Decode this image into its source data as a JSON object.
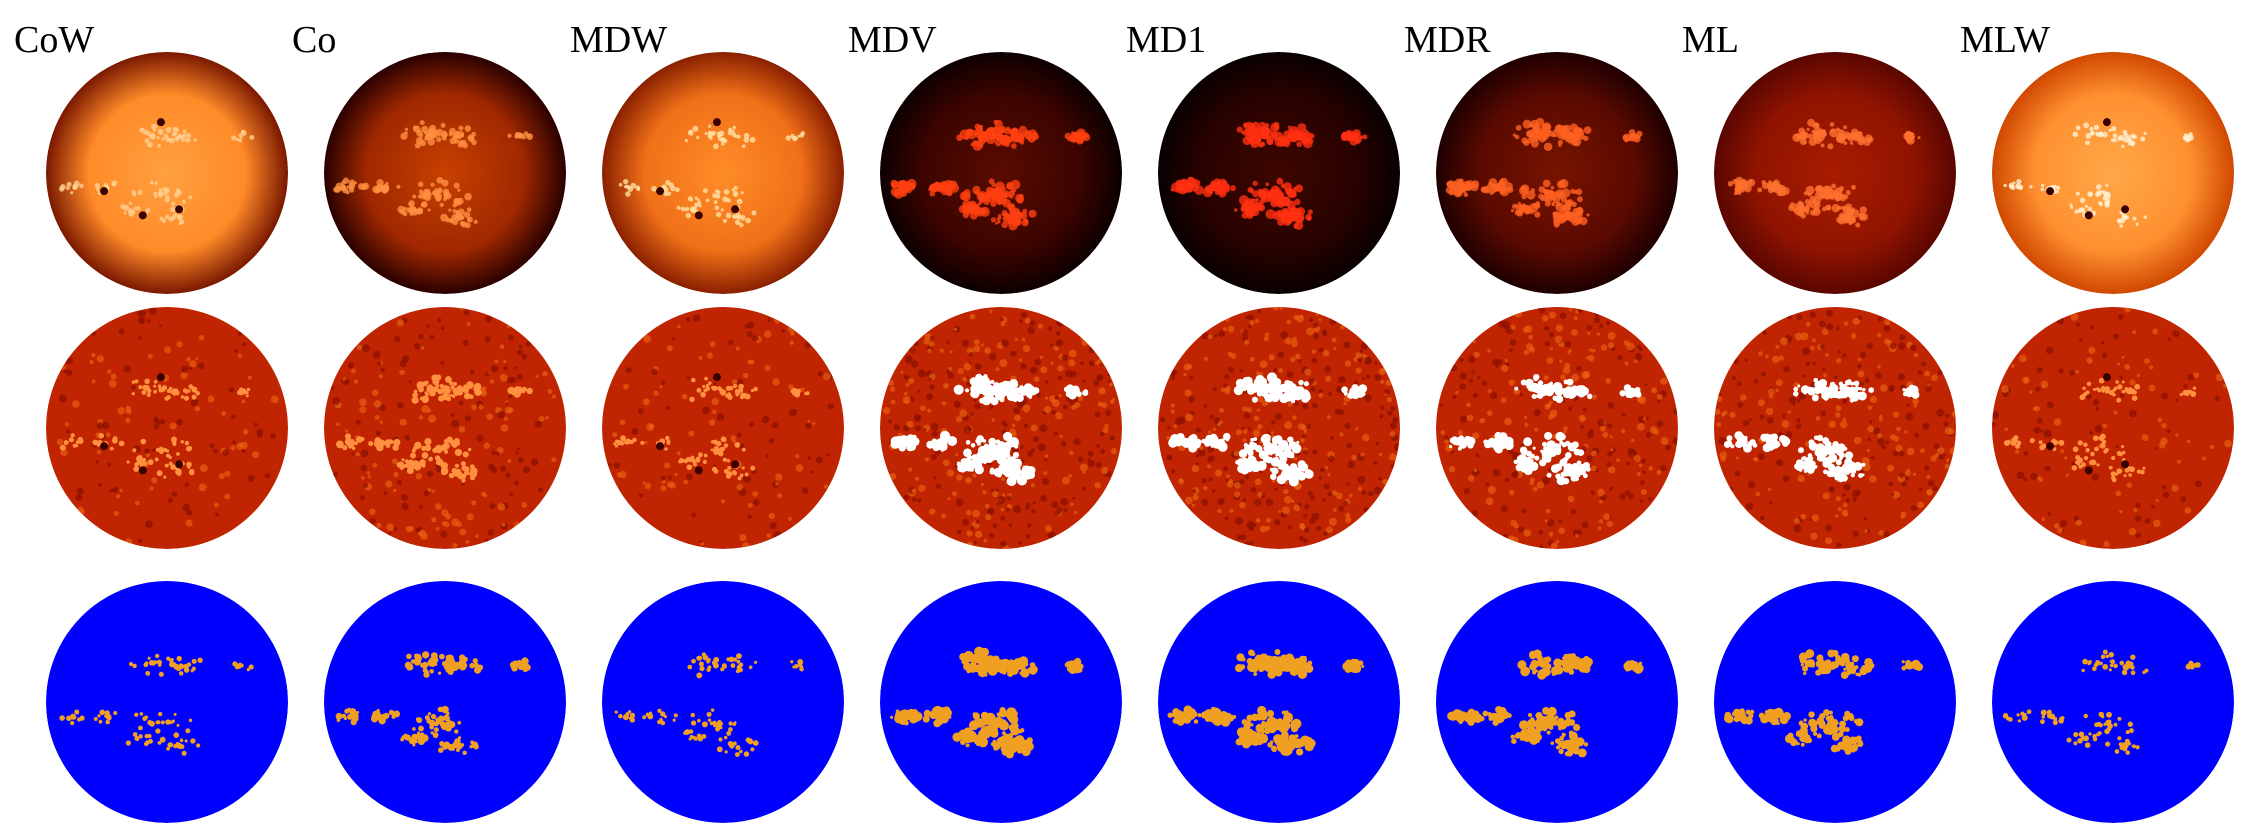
{
  "columns": [
    "CoW",
    "Co",
    "MDW",
    "MDV",
    "MD1",
    "MDR",
    "ML",
    "MLW"
  ]
}
